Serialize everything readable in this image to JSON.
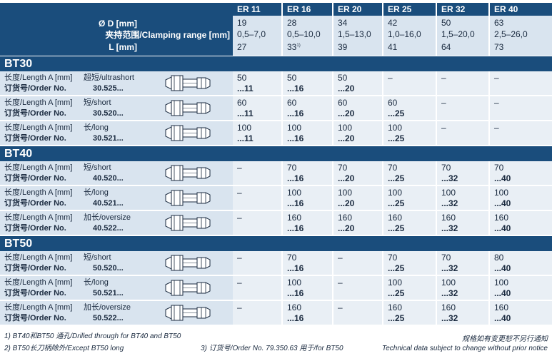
{
  "header": {
    "label_d": "Ø D [mm]",
    "label_clamp": "夹持范围/Clamping range [mm]",
    "label_l": "L [mm]",
    "columns": [
      {
        "name": "ER 11",
        "d": "19",
        "range": "0,5–7,0",
        "l": "27",
        "l_note": ""
      },
      {
        "name": "ER 16",
        "d": "28",
        "range": "0,5–10,0",
        "l": "33",
        "l_note": "1)"
      },
      {
        "name": "ER 20",
        "d": "34",
        "range": "1,5–13,0",
        "l": "39",
        "l_note": ""
      },
      {
        "name": "ER 25",
        "d": "42",
        "range": "1,0–16,0",
        "l": "41",
        "l_note": ""
      },
      {
        "name": "ER 32",
        "d": "50",
        "range": "1,5–20,0",
        "l": "64",
        "l_note": ""
      },
      {
        "name": "ER 40",
        "d": "63",
        "range": "2,5–26,0",
        "l": "73",
        "l_note": ""
      }
    ]
  },
  "labels": {
    "length": "长度/Length A [mm]",
    "order": "订货号/Order No."
  },
  "groups": [
    {
      "title": "BT30",
      "rows": [
        {
          "type": "超短/ultrashort",
          "order": "30.525...",
          "cells": [
            [
              "50",
              "...11"
            ],
            [
              "50",
              "...16"
            ],
            [
              "50",
              "...20"
            ],
            [
              "–",
              ""
            ],
            [
              "–",
              ""
            ],
            [
              "–",
              ""
            ]
          ]
        },
        {
          "type": "短/short",
          "order": "30.520...",
          "cells": [
            [
              "60",
              "...11"
            ],
            [
              "60",
              "...16"
            ],
            [
              "60",
              "...20"
            ],
            [
              "60",
              "...25"
            ],
            [
              "–",
              ""
            ],
            [
              "–",
              ""
            ]
          ]
        },
        {
          "type": "长/long",
          "order": "30.521...",
          "cells": [
            [
              "100",
              "...11"
            ],
            [
              "100",
              "...16"
            ],
            [
              "100",
              "...20"
            ],
            [
              "100",
              "...25"
            ],
            [
              "–",
              ""
            ],
            [
              "–",
              ""
            ]
          ]
        }
      ]
    },
    {
      "title": "BT40",
      "rows": [
        {
          "type": "短/short",
          "order": "40.520...",
          "cells": [
            [
              "–",
              ""
            ],
            [
              "70",
              "...16"
            ],
            [
              "70",
              "...20"
            ],
            [
              "70",
              "...25"
            ],
            [
              "70",
              "...32"
            ],
            [
              "70",
              "...40"
            ]
          ]
        },
        {
          "type": "长/long",
          "order": "40.521...",
          "cells": [
            [
              "–",
              ""
            ],
            [
              "100",
              "...16"
            ],
            [
              "100",
              "...20"
            ],
            [
              "100",
              "...25"
            ],
            [
              "100",
              "...32"
            ],
            [
              "100",
              "...40"
            ]
          ]
        },
        {
          "type": "加长/oversize",
          "order": "40.522...",
          "cells": [
            [
              "–",
              ""
            ],
            [
              "160",
              "...16"
            ],
            [
              "160",
              "...20"
            ],
            [
              "160",
              "...25"
            ],
            [
              "160",
              "...32"
            ],
            [
              "160",
              "...40"
            ]
          ]
        }
      ]
    },
    {
      "title": "BT50",
      "rows": [
        {
          "type": "短/short",
          "order": "50.520...",
          "cells": [
            [
              "–",
              ""
            ],
            [
              "70",
              "...16"
            ],
            [
              "–",
              ""
            ],
            [
              "70",
              "...25"
            ],
            [
              "70",
              "...32"
            ],
            [
              "80",
              "...40"
            ]
          ]
        },
        {
          "type": "长/long",
          "order": "50.521...",
          "cells": [
            [
              "–",
              ""
            ],
            [
              "100",
              "...16"
            ],
            [
              "–",
              ""
            ],
            [
              "100",
              "...25"
            ],
            [
              "100",
              "...32"
            ],
            [
              "100",
              "...40"
            ]
          ]
        },
        {
          "type": "加长/oversize",
          "order": "50.522...",
          "cells": [
            [
              "–",
              ""
            ],
            [
              "160",
              "...16"
            ],
            [
              "–",
              ""
            ],
            [
              "160",
              "...25"
            ],
            [
              "160",
              "...32"
            ],
            [
              "160",
              "...40"
            ]
          ]
        }
      ]
    }
  ],
  "footnotes": {
    "note1": "1) BT40和BT50 通孔/Drilled through for BT40 and BT50",
    "note2": "2) BT50长刀柄除外/Except BT50 long",
    "note3": "3) 订货号/Order No. 79.350.63 用于/for BT50",
    "notice_cn": "规格如有变更恕不另行通知",
    "notice_en": "Technical data subject to change without prior notice"
  },
  "colors": {
    "dark_blue": "#1a4d7c",
    "light_blue": "#d9e4ef",
    "cell_bg": "#e9eff5"
  }
}
